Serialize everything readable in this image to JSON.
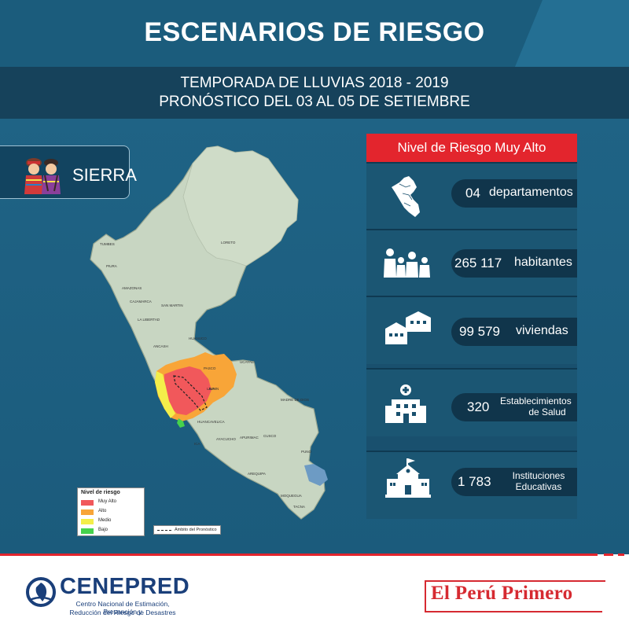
{
  "header": {
    "title": "ESCENARIOS DE RIESGO",
    "subtitle_line1": "TEMPORADA DE LLUVIAS 2018 - 2019",
    "subtitle_line2": "PRONÓSTICO DEL 03 AL 05 DE SETIEMBRE"
  },
  "region": {
    "label": "SIERRA",
    "icon": "andean-people-icon"
  },
  "map": {
    "country": "Perú",
    "department_labels": [
      "TUMBES",
      "PIURA",
      "LORETO",
      "AMAZONAS",
      "CAJAMARCA",
      "SAN MARTIN",
      "LA LIBERTAD",
      "ANCASH",
      "HUANUCO",
      "UCAYALI",
      "PASCO",
      "LIMA",
      "JUNIN",
      "MADRE DE DIOS",
      "HUANCAVELICA",
      "CUSCO",
      "ICA",
      "AYACUCHO",
      "APURIMAC",
      "AREQUIPA",
      "PUNO",
      "MOQUEGUA",
      "TACNA"
    ],
    "legend": {
      "title": "Nivel de riesgo",
      "items": [
        {
          "label": "Muy Alto",
          "color": "#f1585b"
        },
        {
          "label": "Alto",
          "color": "#f8a538"
        },
        {
          "label": "Medio",
          "color": "#f4ee4a"
        },
        {
          "label": "Bajo",
          "color": "#46d24c"
        }
      ]
    },
    "scope_legend": "Ámbito del Pronóstico"
  },
  "panel": {
    "header": "Nivel de Riesgo Muy Alto",
    "stats": [
      {
        "value": "04",
        "unit": "departamentos",
        "icon": "peru-map-icon"
      },
      {
        "value": "265 117",
        "unit": "habitantes",
        "icon": "family-icon"
      },
      {
        "value": "99 579",
        "unit": "viviendas",
        "icon": "houses-icon"
      },
      {
        "value": "320",
        "unit_line1": "Establecimientos",
        "unit_line2": "de Salud",
        "icon": "hospital-icon"
      },
      {
        "value": "1 783",
        "unit_line1": "Instituciones",
        "unit_line2": "Educativas",
        "icon": "school-icon"
      }
    ]
  },
  "footer": {
    "cenepred_name": "CENEPRED",
    "cenepred_sub1": "Centro Nacional de Estimación, Prevención y",
    "cenepred_sub2": "Reducción del Riesgo de Desastres",
    "slogan": "El Perú Primero"
  },
  "colors": {
    "brand_blue": "#1e6587",
    "dark_blue": "#16425b",
    "accent_red": "#e3252d",
    "cenepred_blue": "#1a3f7a"
  }
}
